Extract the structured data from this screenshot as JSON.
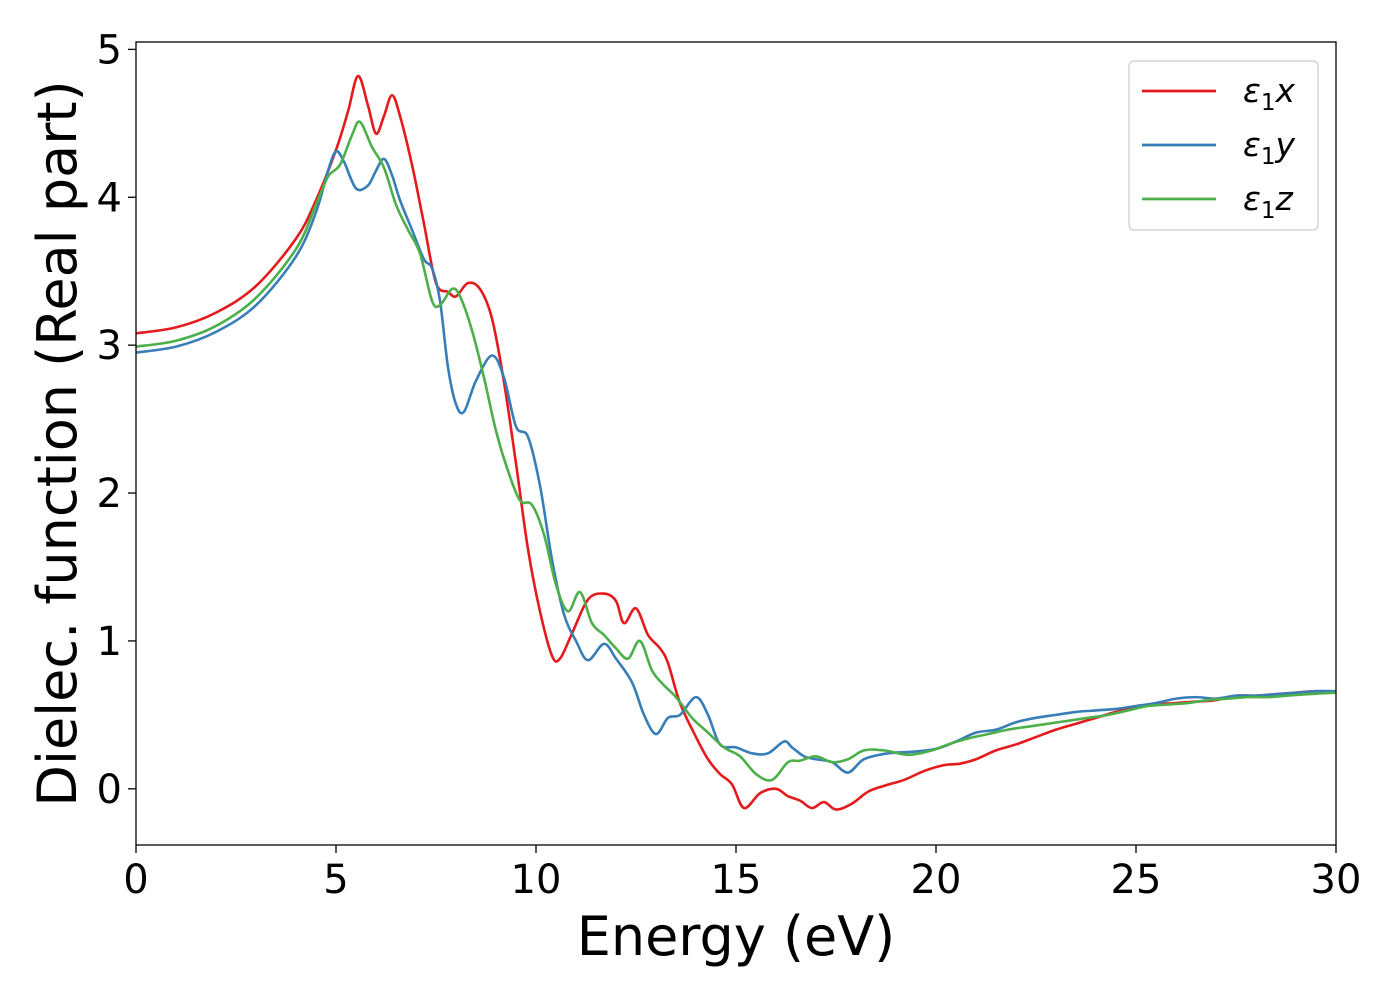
{
  "chart_data": {
    "type": "line",
    "title": "",
    "xlabel": "Energy (eV)",
    "ylabel": "Dielec. function (Real part)",
    "xlim": [
      0,
      30
    ],
    "ylim": [
      -0.38,
      5.05
    ],
    "xticks": [
      0,
      5,
      10,
      15,
      20,
      25,
      30
    ],
    "xtick_labels": [
      "0",
      "5",
      "10",
      "15",
      "20",
      "25",
      "30"
    ],
    "yticks": [
      0,
      1,
      2,
      3,
      4,
      5
    ],
    "ytick_labels": [
      "0",
      "1",
      "2",
      "3",
      "4",
      "5"
    ],
    "grid": false,
    "legend_position": "top-right",
    "series": [
      {
        "name": "ε₁x",
        "legend_symbol": "ε",
        "legend_sub": "1",
        "legend_var": "x",
        "color": "#e41a1c",
        "points": [
          [
            0,
            3.08
          ],
          [
            1,
            3.12
          ],
          [
            2,
            3.22
          ],
          [
            3,
            3.4
          ],
          [
            4,
            3.72
          ],
          [
            4.5,
            3.98
          ],
          [
            5,
            4.32
          ],
          [
            5.3,
            4.58
          ],
          [
            5.55,
            4.82
          ],
          [
            5.8,
            4.62
          ],
          [
            6.0,
            4.43
          ],
          [
            6.2,
            4.55
          ],
          [
            6.4,
            4.69
          ],
          [
            6.6,
            4.55
          ],
          [
            6.9,
            4.22
          ],
          [
            7.2,
            3.82
          ],
          [
            7.5,
            3.42
          ],
          [
            7.8,
            3.36
          ],
          [
            8.0,
            3.33
          ],
          [
            8.3,
            3.42
          ],
          [
            8.6,
            3.38
          ],
          [
            8.9,
            3.18
          ],
          [
            9.2,
            2.75
          ],
          [
            9.5,
            2.2
          ],
          [
            9.8,
            1.62
          ],
          [
            10.1,
            1.2
          ],
          [
            10.4,
            0.9
          ],
          [
            10.6,
            0.88
          ],
          [
            10.9,
            1.05
          ],
          [
            11.3,
            1.28
          ],
          [
            11.7,
            1.32
          ],
          [
            12.0,
            1.27
          ],
          [
            12.2,
            1.12
          ],
          [
            12.5,
            1.22
          ],
          [
            12.8,
            1.04
          ],
          [
            13.1,
            0.95
          ],
          [
            13.3,
            0.85
          ],
          [
            13.6,
            0.58
          ],
          [
            14.0,
            0.35
          ],
          [
            14.3,
            0.2
          ],
          [
            14.6,
            0.1
          ],
          [
            14.9,
            0.03
          ],
          [
            15.2,
            -0.13
          ],
          [
            15.6,
            -0.03
          ],
          [
            16.0,
            0.0
          ],
          [
            16.3,
            -0.05
          ],
          [
            16.6,
            -0.08
          ],
          [
            16.9,
            -0.13
          ],
          [
            17.2,
            -0.09
          ],
          [
            17.5,
            -0.14
          ],
          [
            17.9,
            -0.1
          ],
          [
            18.3,
            -0.02
          ],
          [
            18.7,
            0.02
          ],
          [
            19.2,
            0.06
          ],
          [
            19.7,
            0.12
          ],
          [
            20.2,
            0.16
          ],
          [
            20.6,
            0.17
          ],
          [
            21.0,
            0.2
          ],
          [
            21.5,
            0.26
          ],
          [
            22.0,
            0.3
          ],
          [
            22.5,
            0.35
          ],
          [
            23.0,
            0.4
          ],
          [
            23.5,
            0.44
          ],
          [
            24.0,
            0.48
          ],
          [
            24.5,
            0.52
          ],
          [
            25.0,
            0.55
          ],
          [
            25.5,
            0.57
          ],
          [
            26.0,
            0.58
          ],
          [
            26.5,
            0.59
          ],
          [
            27.0,
            0.6
          ],
          [
            27.5,
            0.63
          ],
          [
            28.0,
            0.63
          ],
          [
            28.5,
            0.64
          ],
          [
            29.0,
            0.65
          ],
          [
            29.5,
            0.66
          ],
          [
            30,
            0.65
          ]
        ]
      },
      {
        "name": "ε₁y",
        "legend_symbol": "ε",
        "legend_sub": "1",
        "legend_var": "y",
        "color": "#377eb8",
        "points": [
          [
            0,
            2.95
          ],
          [
            1,
            2.99
          ],
          [
            2,
            3.09
          ],
          [
            3,
            3.27
          ],
          [
            4,
            3.6
          ],
          [
            4.5,
            3.9
          ],
          [
            4.8,
            4.18
          ],
          [
            5.0,
            4.31
          ],
          [
            5.2,
            4.24
          ],
          [
            5.5,
            4.06
          ],
          [
            5.8,
            4.08
          ],
          [
            6.0,
            4.18
          ],
          [
            6.2,
            4.26
          ],
          [
            6.4,
            4.15
          ],
          [
            6.6,
            3.98
          ],
          [
            6.9,
            3.78
          ],
          [
            7.2,
            3.58
          ],
          [
            7.4,
            3.52
          ],
          [
            7.6,
            3.3
          ],
          [
            7.8,
            2.85
          ],
          [
            8.0,
            2.6
          ],
          [
            8.2,
            2.55
          ],
          [
            8.5,
            2.76
          ],
          [
            8.9,
            2.93
          ],
          [
            9.2,
            2.78
          ],
          [
            9.5,
            2.45
          ],
          [
            9.8,
            2.38
          ],
          [
            10.1,
            2.05
          ],
          [
            10.4,
            1.55
          ],
          [
            10.7,
            1.18
          ],
          [
            11.0,
            1.0
          ],
          [
            11.3,
            0.87
          ],
          [
            11.7,
            0.98
          ],
          [
            12.0,
            0.88
          ],
          [
            12.4,
            0.72
          ],
          [
            12.7,
            0.5
          ],
          [
            13.0,
            0.37
          ],
          [
            13.3,
            0.48
          ],
          [
            13.6,
            0.5
          ],
          [
            14.0,
            0.62
          ],
          [
            14.3,
            0.5
          ],
          [
            14.6,
            0.3
          ],
          [
            15.0,
            0.28
          ],
          [
            15.4,
            0.24
          ],
          [
            15.8,
            0.24
          ],
          [
            16.2,
            0.32
          ],
          [
            16.4,
            0.28
          ],
          [
            16.7,
            0.22
          ],
          [
            17.0,
            0.2
          ],
          [
            17.4,
            0.18
          ],
          [
            17.8,
            0.11
          ],
          [
            18.2,
            0.2
          ],
          [
            18.8,
            0.24
          ],
          [
            19.4,
            0.25
          ],
          [
            20.0,
            0.27
          ],
          [
            20.5,
            0.32
          ],
          [
            21.0,
            0.38
          ],
          [
            21.5,
            0.4
          ],
          [
            22.0,
            0.45
          ],
          [
            22.5,
            0.48
          ],
          [
            23.0,
            0.5
          ],
          [
            23.5,
            0.52
          ],
          [
            24.0,
            0.53
          ],
          [
            24.5,
            0.54
          ],
          [
            25.0,
            0.56
          ],
          [
            25.5,
            0.58
          ],
          [
            26.0,
            0.61
          ],
          [
            26.5,
            0.62
          ],
          [
            27.0,
            0.61
          ],
          [
            27.5,
            0.63
          ],
          [
            28.0,
            0.63
          ],
          [
            28.5,
            0.64
          ],
          [
            29.0,
            0.65
          ],
          [
            29.5,
            0.66
          ],
          [
            30,
            0.66
          ]
        ]
      },
      {
        "name": "ε₁z",
        "legend_symbol": "ε",
        "legend_sub": "1",
        "legend_var": "z",
        "color": "#4daf4a",
        "points": [
          [
            0,
            2.99
          ],
          [
            1,
            3.03
          ],
          [
            2,
            3.13
          ],
          [
            3,
            3.32
          ],
          [
            4,
            3.65
          ],
          [
            4.5,
            3.95
          ],
          [
            4.8,
            4.14
          ],
          [
            5.1,
            4.22
          ],
          [
            5.4,
            4.42
          ],
          [
            5.6,
            4.51
          ],
          [
            5.9,
            4.34
          ],
          [
            6.2,
            4.2
          ],
          [
            6.5,
            3.95
          ],
          [
            6.8,
            3.78
          ],
          [
            7.1,
            3.62
          ],
          [
            7.4,
            3.3
          ],
          [
            7.6,
            3.27
          ],
          [
            7.9,
            3.38
          ],
          [
            8.1,
            3.33
          ],
          [
            8.4,
            3.1
          ],
          [
            8.7,
            2.78
          ],
          [
            9.0,
            2.42
          ],
          [
            9.3,
            2.15
          ],
          [
            9.6,
            1.95
          ],
          [
            9.9,
            1.92
          ],
          [
            10.2,
            1.72
          ],
          [
            10.5,
            1.38
          ],
          [
            10.8,
            1.2
          ],
          [
            11.1,
            1.33
          ],
          [
            11.4,
            1.12
          ],
          [
            11.7,
            1.04
          ],
          [
            12.0,
            0.95
          ],
          [
            12.3,
            0.88
          ],
          [
            12.6,
            1.0
          ],
          [
            12.9,
            0.8
          ],
          [
            13.2,
            0.7
          ],
          [
            13.5,
            0.62
          ],
          [
            13.9,
            0.48
          ],
          [
            14.3,
            0.38
          ],
          [
            14.7,
            0.28
          ],
          [
            15.1,
            0.22
          ],
          [
            15.5,
            0.1
          ],
          [
            15.9,
            0.06
          ],
          [
            16.3,
            0.18
          ],
          [
            16.6,
            0.19
          ],
          [
            17.0,
            0.22
          ],
          [
            17.4,
            0.18
          ],
          [
            17.8,
            0.2
          ],
          [
            18.2,
            0.26
          ],
          [
            18.7,
            0.26
          ],
          [
            19.3,
            0.23
          ],
          [
            19.9,
            0.26
          ],
          [
            20.3,
            0.3
          ],
          [
            20.8,
            0.34
          ],
          [
            21.3,
            0.37
          ],
          [
            21.8,
            0.4
          ],
          [
            22.3,
            0.42
          ],
          [
            22.8,
            0.44
          ],
          [
            23.3,
            0.46
          ],
          [
            23.8,
            0.48
          ],
          [
            24.3,
            0.5
          ],
          [
            24.8,
            0.53
          ],
          [
            25.3,
            0.56
          ],
          [
            25.8,
            0.57
          ],
          [
            26.3,
            0.58
          ],
          [
            26.8,
            0.6
          ],
          [
            27.3,
            0.61
          ],
          [
            27.8,
            0.62
          ],
          [
            28.3,
            0.62
          ],
          [
            28.8,
            0.63
          ],
          [
            29.3,
            0.64
          ],
          [
            30,
            0.65
          ]
        ]
      }
    ]
  }
}
